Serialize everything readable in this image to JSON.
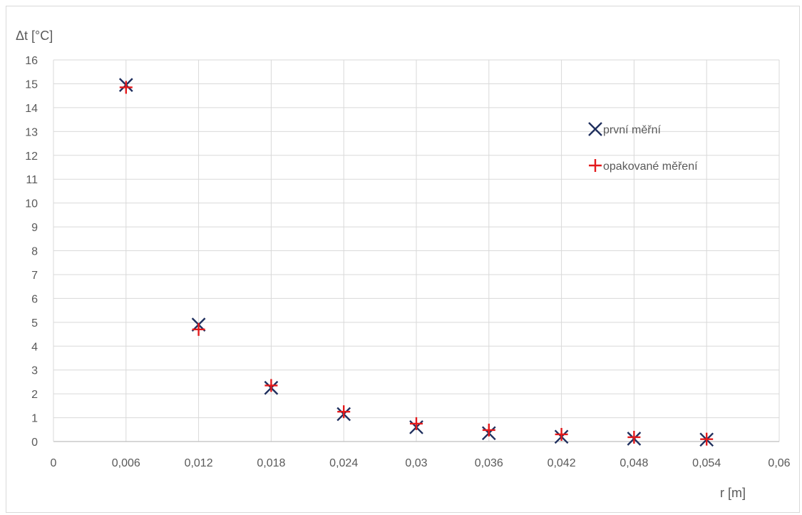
{
  "chart_data": {
    "type": "scatter",
    "title": "",
    "xlabel": "r [m]",
    "ylabel": "Δt [°C]",
    "xlim": [
      0,
      0.06
    ],
    "ylim": [
      0,
      16
    ],
    "x_ticks": [
      "0",
      "0,006",
      "0,012",
      "0,018",
      "0,024",
      "0,03",
      "0,036",
      "0,042",
      "0,048",
      "0,054",
      "0,06"
    ],
    "y_ticks": [
      "0",
      "1",
      "2",
      "3",
      "4",
      "5",
      "6",
      "7",
      "8",
      "9",
      "10",
      "11",
      "12",
      "13",
      "14",
      "15",
      "16"
    ],
    "grid": true,
    "legend_position": "right",
    "series": [
      {
        "name": "první měřní",
        "marker": "x",
        "color": "#1f2f5e",
        "x": [
          0.006,
          0.012,
          0.018,
          0.024,
          0.03,
          0.036,
          0.042,
          0.048,
          0.054
        ],
        "y": [
          14.95,
          4.9,
          2.25,
          1.15,
          0.6,
          0.35,
          0.2,
          0.12,
          0.08
        ]
      },
      {
        "name": "opakované měření",
        "marker": "+",
        "color": "#e31a1c",
        "x": [
          0.006,
          0.012,
          0.018,
          0.024,
          0.03,
          0.036,
          0.042,
          0.048,
          0.054
        ],
        "y": [
          14.85,
          4.7,
          2.35,
          1.25,
          0.75,
          0.48,
          0.3,
          0.18,
          0.1
        ]
      }
    ]
  }
}
